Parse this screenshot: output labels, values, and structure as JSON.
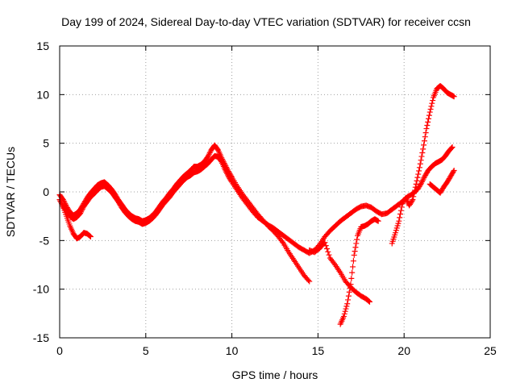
{
  "chart_data": {
    "type": "scatter",
    "title": "Day 199 of 2024, Sidereal Day-to-day VTEC variation (SDTVAR) for receiver ccsn",
    "xlabel": "GPS time / hours",
    "ylabel": "SDTVAR / TECUs",
    "xlim": [
      0,
      25
    ],
    "ylim": [
      -15,
      15
    ],
    "xticks": [
      "0",
      "5",
      "10",
      "15",
      "20",
      "25"
    ],
    "yticks": [
      "15",
      "10",
      "5",
      "0",
      "-5",
      "-10",
      "-15"
    ],
    "grid": true,
    "marker": "+",
    "color": "#ff0000",
    "series": [
      {
        "x": [
          0.0,
          0.2,
          0.4,
          0.6,
          0.8,
          1.0,
          1.2,
          1.4,
          1.6,
          1.8,
          2.0,
          2.2,
          2.4,
          2.6,
          2.8,
          3.0,
          3.2,
          3.4,
          3.6,
          3.8,
          4.0,
          4.2,
          4.4,
          4.6,
          4.8,
          5.0,
          5.2,
          5.4,
          5.6,
          5.8,
          6.0,
          6.2,
          6.4,
          6.6,
          6.8,
          7.0,
          7.2,
          7.4,
          7.6,
          7.8,
          8.0,
          8.2,
          8.4,
          8.6,
          8.8,
          9.0,
          9.2,
          9.4,
          9.6,
          9.8,
          10.0,
          10.3,
          10.6,
          10.9,
          11.2,
          11.5,
          11.8,
          12.1,
          12.4,
          12.7,
          13.0,
          13.3,
          13.6,
          13.9,
          14.2,
          14.5,
          14.8,
          15.1,
          15.4,
          15.7,
          16.0,
          16.3,
          16.6,
          16.9,
          17.2,
          17.5,
          17.8,
          18.1,
          18.4,
          18.7,
          19.0,
          19.3,
          19.6,
          19.9,
          20.2,
          20.5,
          20.8,
          21.0,
          21.2,
          21.4,
          21.6,
          21.8,
          22.0,
          22.2,
          22.4,
          22.6,
          22.8
        ],
        "y": [
          -0.8,
          -1.5,
          -2.0,
          -2.5,
          -2.8,
          -2.6,
          -2.2,
          -1.5,
          -1.0,
          -0.5,
          -0.2,
          0.2,
          0.5,
          0.6,
          0.3,
          0.0,
          -0.5,
          -1.0,
          -1.6,
          -2.1,
          -2.5,
          -2.8,
          -3.0,
          -3.1,
          -3.3,
          -3.2,
          -3.0,
          -2.7,
          -2.3,
          -1.8,
          -1.3,
          -0.9,
          -0.5,
          0.0,
          0.4,
          0.8,
          1.2,
          1.5,
          1.7,
          2.0,
          2.1,
          2.3,
          2.6,
          2.9,
          3.3,
          3.7,
          3.6,
          3.1,
          2.3,
          1.6,
          1.0,
          0.2,
          -0.6,
          -1.3,
          -2.0,
          -2.6,
          -3.0,
          -3.4,
          -3.7,
          -4.1,
          -4.5,
          -4.9,
          -5.3,
          -5.7,
          -6.0,
          -6.3,
          -6.0,
          -5.4,
          -4.6,
          -4.0,
          -3.5,
          -3.0,
          -2.6,
          -2.2,
          -1.8,
          -1.5,
          -1.4,
          -1.6,
          -2.0,
          -2.3,
          -2.2,
          -1.8,
          -1.4,
          -1.0,
          -0.5,
          -0.2,
          0.3,
          0.9,
          1.6,
          2.2,
          2.6,
          2.9,
          3.1,
          3.3,
          3.7,
          4.2,
          4.6
        ]
      },
      {
        "x": [
          0.2,
          0.4,
          0.6,
          0.8,
          1.0,
          1.2,
          1.4,
          1.6,
          1.8
        ],
        "y": [
          -1.5,
          -2.5,
          -3.5,
          -4.3,
          -4.8,
          -4.6,
          -4.2,
          -4.3,
          -4.6
        ]
      },
      {
        "x": [
          0.0,
          0.2,
          0.4,
          0.6,
          0.8,
          1.0,
          1.2,
          1.4,
          1.6,
          1.8,
          2.0,
          2.2,
          2.4,
          2.6,
          2.8,
          3.0,
          3.2,
          3.4,
          3.6,
          3.8,
          4.0,
          4.2,
          4.4,
          4.6,
          4.8,
          5.0,
          5.2,
          5.4,
          5.6,
          5.8,
          6.0,
          6.2,
          6.4,
          6.6,
          6.8,
          7.0,
          7.2,
          7.4,
          7.6,
          7.8,
          8.0,
          8.2,
          8.4,
          8.6,
          8.8,
          9.0,
          9.2,
          9.4,
          9.6,
          9.8,
          10.0,
          10.3,
          10.6,
          10.9,
          11.2,
          11.5,
          11.8,
          12.1,
          12.4,
          12.7,
          13.0,
          13.3,
          13.6,
          13.9,
          14.2,
          14.5
        ],
        "y": [
          -0.3,
          -0.8,
          -1.5,
          -2.1,
          -2.4,
          -2.2,
          -1.8,
          -1.2,
          -0.6,
          -0.1,
          0.3,
          0.7,
          0.9,
          1.0,
          0.7,
          0.3,
          -0.2,
          -0.8,
          -1.3,
          -1.8,
          -2.2,
          -2.5,
          -2.7,
          -2.8,
          -3.0,
          -2.9,
          -2.7,
          -2.4,
          -2.0,
          -1.5,
          -1.0,
          -0.6,
          -0.1,
          0.3,
          0.8,
          1.2,
          1.6,
          1.9,
          2.2,
          2.6,
          2.6,
          2.8,
          3.1,
          3.6,
          4.3,
          4.8,
          4.3,
          3.5,
          2.8,
          2.1,
          1.5,
          0.6,
          -0.2,
          -0.9,
          -1.6,
          -2.3,
          -2.9,
          -3.5,
          -4.0,
          -4.6,
          -5.3,
          -6.2,
          -7.0,
          -7.8,
          -8.6,
          -9.2
        ]
      },
      {
        "x": [
          14.5,
          14.8,
          15.1,
          15.4,
          15.7,
          16.0,
          16.3,
          16.6,
          16.9,
          17.2,
          17.5,
          17.8,
          18.0
        ],
        "y": [
          -6.0,
          -6.2,
          -5.8,
          -5.2,
          -6.8,
          -7.5,
          -8.3,
          -9.2,
          -9.8,
          -10.3,
          -10.7,
          -11.0,
          -11.3
        ]
      },
      {
        "x": [
          16.3,
          16.5,
          16.7,
          16.9,
          17.1,
          17.3,
          17.5,
          17.7,
          17.9,
          18.1,
          18.3,
          18.5
        ],
        "y": [
          -13.6,
          -12.8,
          -11.5,
          -9.5,
          -6.5,
          -4.5,
          -3.6,
          -3.5,
          -3.3,
          -3.0,
          -2.8,
          -3.0
        ]
      },
      {
        "x": [
          19.3,
          19.5,
          19.7,
          19.9,
          20.1,
          20.3,
          20.5,
          20.7,
          20.9,
          21.1,
          21.3,
          21.5,
          21.7,
          21.9,
          22.1,
          22.3,
          22.5,
          22.7,
          22.9
        ],
        "y": [
          -5.3,
          -4.2,
          -3.0,
          -1.2,
          -0.6,
          -1.4,
          -0.8,
          0.8,
          2.5,
          4.4,
          6.5,
          8.2,
          9.7,
          10.6,
          10.9,
          10.6,
          10.2,
          10.0,
          9.8
        ]
      },
      {
        "x": [
          21.5,
          21.7,
          21.9,
          22.1,
          22.3,
          22.5,
          22.7,
          22.9
        ],
        "y": [
          0.8,
          0.5,
          0.2,
          -0.1,
          0.5,
          1.0,
          1.6,
          2.2
        ]
      }
    ]
  }
}
